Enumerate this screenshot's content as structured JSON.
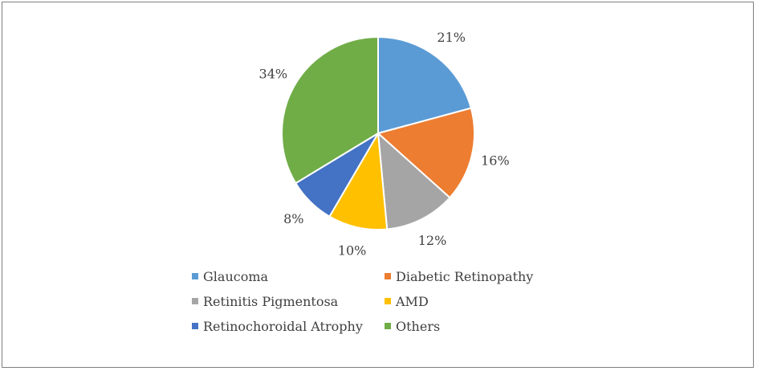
{
  "chart_data": {
    "type": "pie",
    "title": "",
    "slices": [
      {
        "label": "Glaucoma",
        "value": 21,
        "display": "21%",
        "color": "#5B9BD5"
      },
      {
        "label": "Diabetic Retinopathy",
        "value": 16,
        "display": "16%",
        "color": "#ED7D31"
      },
      {
        "label": "Retinitis Pigmentosa",
        "value": 12,
        "display": "12%",
        "color": "#A5A5A5"
      },
      {
        "label": "AMD",
        "value": 10,
        "display": "10%",
        "color": "#FFC000"
      },
      {
        "label": "Retinochoroidal Atrophy",
        "value": 8,
        "display": "8%",
        "color": "#4472C4"
      },
      {
        "label": "Others",
        "value": 34,
        "display": "34%",
        "color": "#70AD47"
      }
    ],
    "legend_position": "bottom",
    "start": "top, clockwise"
  }
}
